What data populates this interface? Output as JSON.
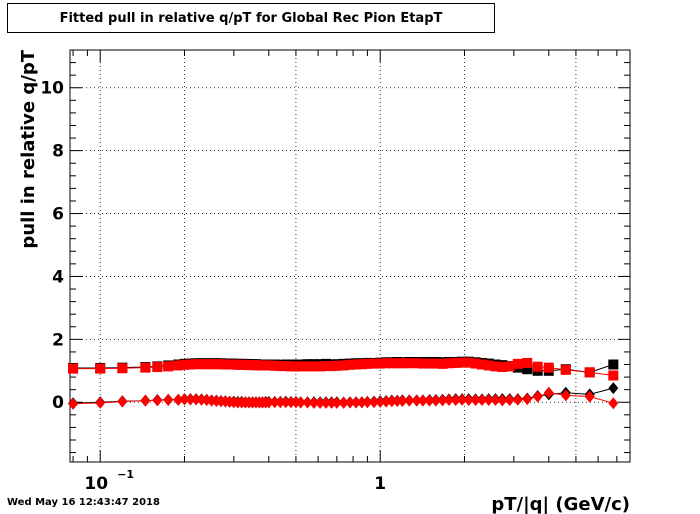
{
  "timestamp": "Wed May 16 12:43:47 2018",
  "chart_data": {
    "type": "scatter",
    "title": "Fitted pull in relative q/pT for Global Rec Pion EtapT",
    "xlabel": "pT/|q| (GeV/c)",
    "ylabel": "pull in relative q/pT",
    "x_scale": "log",
    "xlim": [
      0.078,
      7.8
    ],
    "ylim": [
      -1.9,
      11.2
    ],
    "x_tick_labels": [
      {
        "value": 0.1,
        "base": "10",
        "exp": "−1"
      },
      {
        "value": 1,
        "base": "1",
        "exp": ""
      }
    ],
    "y_ticks": [
      0,
      2,
      4,
      6,
      8,
      10
    ],
    "grid": true,
    "series": [
      {
        "color": "#000000",
        "marker": "square",
        "points": [
          [
            0.08,
            1.09
          ],
          [
            0.1,
            1.09
          ],
          [
            0.12,
            1.1
          ],
          [
            0.145,
            1.12
          ],
          [
            0.16,
            1.14
          ],
          [
            0.175,
            1.17
          ],
          [
            0.19,
            1.2
          ],
          [
            0.2,
            1.22
          ],
          [
            0.21,
            1.23
          ],
          [
            0.22,
            1.24
          ],
          [
            0.23,
            1.24
          ],
          [
            0.24,
            1.24
          ],
          [
            0.25,
            1.24
          ],
          [
            0.26,
            1.24
          ],
          [
            0.27,
            1.24
          ],
          [
            0.28,
            1.23
          ],
          [
            0.29,
            1.23
          ],
          [
            0.3,
            1.23
          ],
          [
            0.31,
            1.22
          ],
          [
            0.32,
            1.22
          ],
          [
            0.33,
            1.22
          ],
          [
            0.34,
            1.21
          ],
          [
            0.35,
            1.21
          ],
          [
            0.36,
            1.21
          ],
          [
            0.37,
            1.2
          ],
          [
            0.38,
            1.2
          ],
          [
            0.39,
            1.2
          ],
          [
            0.4,
            1.2
          ],
          [
            0.42,
            1.2
          ],
          [
            0.44,
            1.19
          ],
          [
            0.46,
            1.2
          ],
          [
            0.48,
            1.19
          ],
          [
            0.5,
            1.2
          ],
          [
            0.52,
            1.2
          ],
          [
            0.55,
            1.21
          ],
          [
            0.58,
            1.21
          ],
          [
            0.61,
            1.21
          ],
          [
            0.64,
            1.22
          ],
          [
            0.67,
            1.2
          ],
          [
            0.7,
            1.21
          ],
          [
            0.74,
            1.22
          ],
          [
            0.78,
            1.23
          ],
          [
            0.82,
            1.24
          ],
          [
            0.86,
            1.24
          ],
          [
            0.9,
            1.25
          ],
          [
            0.95,
            1.25
          ],
          [
            1.0,
            1.26
          ],
          [
            1.05,
            1.27
          ],
          [
            1.1,
            1.27
          ],
          [
            1.15,
            1.28
          ],
          [
            1.2,
            1.27
          ],
          [
            1.27,
            1.28
          ],
          [
            1.35,
            1.28
          ],
          [
            1.42,
            1.28
          ],
          [
            1.5,
            1.28
          ],
          [
            1.58,
            1.28
          ],
          [
            1.67,
            1.27
          ],
          [
            1.76,
            1.28
          ],
          [
            1.86,
            1.28
          ],
          [
            1.96,
            1.29
          ],
          [
            2.07,
            1.29
          ],
          [
            2.19,
            1.27
          ],
          [
            2.31,
            1.25
          ],
          [
            2.44,
            1.23
          ],
          [
            2.58,
            1.2
          ],
          [
            2.73,
            1.18
          ],
          [
            2.9,
            1.15
          ],
          [
            3.1,
            1.1
          ],
          [
            3.35,
            1.05
          ],
          [
            3.65,
            1.0
          ],
          [
            4.0,
            1.0
          ],
          [
            4.6,
            1.05
          ],
          [
            5.6,
            0.95
          ],
          [
            6.8,
            1.2
          ]
        ]
      },
      {
        "color": "#000000",
        "marker": "diamond",
        "points": [
          [
            0.08,
            -0.03
          ],
          [
            0.1,
            0.0
          ],
          [
            0.12,
            0.03
          ],
          [
            0.145,
            0.05
          ],
          [
            0.16,
            0.07
          ],
          [
            0.175,
            0.08
          ],
          [
            0.19,
            0.08
          ],
          [
            0.2,
            0.1
          ],
          [
            0.21,
            0.1
          ],
          [
            0.22,
            0.1
          ],
          [
            0.23,
            0.09
          ],
          [
            0.24,
            0.08
          ],
          [
            0.25,
            0.06
          ],
          [
            0.26,
            0.05
          ],
          [
            0.27,
            0.04
          ],
          [
            0.28,
            0.03
          ],
          [
            0.29,
            0.02
          ],
          [
            0.3,
            0.02
          ],
          [
            0.31,
            0.01
          ],
          [
            0.32,
            0.01
          ],
          [
            0.33,
            0.0
          ],
          [
            0.34,
            0.0
          ],
          [
            0.35,
            0.0
          ],
          [
            0.36,
            0.0
          ],
          [
            0.37,
            0.0
          ],
          [
            0.38,
            0.0
          ],
          [
            0.39,
            0.01
          ],
          [
            0.4,
            0.01
          ],
          [
            0.42,
            0.01
          ],
          [
            0.44,
            0.01
          ],
          [
            0.46,
            0.02
          ],
          [
            0.48,
            0.01
          ],
          [
            0.5,
            0.01
          ],
          [
            0.52,
            0.0
          ],
          [
            0.55,
            0.0
          ],
          [
            0.58,
            0.0
          ],
          [
            0.61,
            0.0
          ],
          [
            0.64,
            0.0
          ],
          [
            0.67,
            0.0
          ],
          [
            0.7,
            0.0
          ],
          [
            0.74,
            -0.01
          ],
          [
            0.78,
            0.0
          ],
          [
            0.82,
            0.0
          ],
          [
            0.86,
            0.0
          ],
          [
            0.9,
            0.01
          ],
          [
            0.95,
            0.02
          ],
          [
            1.0,
            0.03
          ],
          [
            1.05,
            0.04
          ],
          [
            1.1,
            0.05
          ],
          [
            1.15,
            0.05
          ],
          [
            1.2,
            0.06
          ],
          [
            1.27,
            0.06
          ],
          [
            1.35,
            0.06
          ],
          [
            1.42,
            0.06
          ],
          [
            1.5,
            0.07
          ],
          [
            1.58,
            0.07
          ],
          [
            1.67,
            0.08
          ],
          [
            1.76,
            0.09
          ],
          [
            1.86,
            0.1
          ],
          [
            1.96,
            0.1
          ],
          [
            2.07,
            0.1
          ],
          [
            2.19,
            0.09
          ],
          [
            2.31,
            0.09
          ],
          [
            2.44,
            0.1
          ],
          [
            2.58,
            0.1
          ],
          [
            2.73,
            0.1
          ],
          [
            2.9,
            0.1
          ],
          [
            3.1,
            0.1
          ],
          [
            3.35,
            0.12
          ],
          [
            3.65,
            0.2
          ],
          [
            4.0,
            0.25
          ],
          [
            4.6,
            0.3
          ],
          [
            5.6,
            0.25
          ],
          [
            6.8,
            0.45
          ]
        ]
      },
      {
        "color": "#ff0000",
        "marker": "square",
        "points": [
          [
            0.08,
            1.07
          ],
          [
            0.1,
            1.07
          ],
          [
            0.12,
            1.08
          ],
          [
            0.145,
            1.1
          ],
          [
            0.16,
            1.12
          ],
          [
            0.175,
            1.14
          ],
          [
            0.19,
            1.17
          ],
          [
            0.2,
            1.19
          ],
          [
            0.21,
            1.2
          ],
          [
            0.22,
            1.21
          ],
          [
            0.23,
            1.21
          ],
          [
            0.24,
            1.21
          ],
          [
            0.25,
            1.21
          ],
          [
            0.26,
            1.21
          ],
          [
            0.27,
            1.21
          ],
          [
            0.28,
            1.2
          ],
          [
            0.29,
            1.2
          ],
          [
            0.3,
            1.2
          ],
          [
            0.31,
            1.19
          ],
          [
            0.32,
            1.19
          ],
          [
            0.33,
            1.19
          ],
          [
            0.34,
            1.18
          ],
          [
            0.35,
            1.18
          ],
          [
            0.36,
            1.18
          ],
          [
            0.37,
            1.17
          ],
          [
            0.38,
            1.17
          ],
          [
            0.39,
            1.17
          ],
          [
            0.4,
            1.17
          ],
          [
            0.42,
            1.16
          ],
          [
            0.44,
            1.15
          ],
          [
            0.46,
            1.15
          ],
          [
            0.48,
            1.14
          ],
          [
            0.5,
            1.14
          ],
          [
            0.52,
            1.14
          ],
          [
            0.55,
            1.14
          ],
          [
            0.58,
            1.14
          ],
          [
            0.61,
            1.14
          ],
          [
            0.64,
            1.15
          ],
          [
            0.67,
            1.15
          ],
          [
            0.7,
            1.16
          ],
          [
            0.74,
            1.17
          ],
          [
            0.78,
            1.19
          ],
          [
            0.82,
            1.2
          ],
          [
            0.86,
            1.21
          ],
          [
            0.9,
            1.22
          ],
          [
            0.95,
            1.23
          ],
          [
            1.0,
            1.23
          ],
          [
            1.05,
            1.24
          ],
          [
            1.1,
            1.24
          ],
          [
            1.15,
            1.24
          ],
          [
            1.2,
            1.24
          ],
          [
            1.27,
            1.24
          ],
          [
            1.35,
            1.24
          ],
          [
            1.42,
            1.23
          ],
          [
            1.5,
            1.23
          ],
          [
            1.58,
            1.23
          ],
          [
            1.67,
            1.22
          ],
          [
            1.76,
            1.24
          ],
          [
            1.86,
            1.25
          ],
          [
            1.96,
            1.26
          ],
          [
            2.07,
            1.26
          ],
          [
            2.19,
            1.23
          ],
          [
            2.31,
            1.2
          ],
          [
            2.44,
            1.17
          ],
          [
            2.58,
            1.14
          ],
          [
            2.73,
            1.12
          ],
          [
            2.9,
            1.14
          ],
          [
            3.1,
            1.22
          ],
          [
            3.35,
            1.25
          ],
          [
            3.65,
            1.13
          ],
          [
            4.0,
            1.1
          ],
          [
            4.6,
            1.03
          ],
          [
            5.6,
            0.95
          ],
          [
            6.8,
            0.85
          ]
        ]
      },
      {
        "color": "#ff0000",
        "marker": "diamond",
        "points": [
          [
            0.08,
            -0.05
          ],
          [
            0.1,
            -0.02
          ],
          [
            0.12,
            0.02
          ],
          [
            0.145,
            0.05
          ],
          [
            0.16,
            0.06
          ],
          [
            0.175,
            0.07
          ],
          [
            0.19,
            0.08
          ],
          [
            0.2,
            0.09
          ],
          [
            0.21,
            0.09
          ],
          [
            0.22,
            0.09
          ],
          [
            0.23,
            0.08
          ],
          [
            0.24,
            0.07
          ],
          [
            0.25,
            0.05
          ],
          [
            0.26,
            0.04
          ],
          [
            0.27,
            0.03
          ],
          [
            0.28,
            0.02
          ],
          [
            0.29,
            0.01
          ],
          [
            0.3,
            0.0
          ],
          [
            0.31,
            -0.01
          ],
          [
            0.32,
            -0.01
          ],
          [
            0.33,
            -0.01
          ],
          [
            0.34,
            -0.01
          ],
          [
            0.35,
            -0.01
          ],
          [
            0.36,
            -0.01
          ],
          [
            0.37,
            -0.01
          ],
          [
            0.38,
            -0.01
          ],
          [
            0.39,
            -0.01
          ],
          [
            0.4,
            -0.01
          ],
          [
            0.42,
            0.0
          ],
          [
            0.44,
            0.0
          ],
          [
            0.46,
            0.0
          ],
          [
            0.48,
            0.0
          ],
          [
            0.5,
            0.0
          ],
          [
            0.52,
            -0.01
          ],
          [
            0.55,
            -0.01
          ],
          [
            0.58,
            -0.02
          ],
          [
            0.61,
            -0.02
          ],
          [
            0.64,
            -0.02
          ],
          [
            0.67,
            -0.02
          ],
          [
            0.7,
            -0.02
          ],
          [
            0.74,
            -0.02
          ],
          [
            0.78,
            -0.01
          ],
          [
            0.82,
            -0.01
          ],
          [
            0.86,
            0.0
          ],
          [
            0.9,
            0.0
          ],
          [
            0.95,
            0.0
          ],
          [
            1.0,
            0.01
          ],
          [
            1.05,
            0.02
          ],
          [
            1.1,
            0.03
          ],
          [
            1.15,
            0.04
          ],
          [
            1.2,
            0.04
          ],
          [
            1.27,
            0.05
          ],
          [
            1.35,
            0.05
          ],
          [
            1.42,
            0.05
          ],
          [
            1.5,
            0.05
          ],
          [
            1.58,
            0.05
          ],
          [
            1.67,
            0.06
          ],
          [
            1.76,
            0.07
          ],
          [
            1.86,
            0.07
          ],
          [
            1.96,
            0.08
          ],
          [
            2.07,
            0.07
          ],
          [
            2.19,
            0.07
          ],
          [
            2.31,
            0.07
          ],
          [
            2.44,
            0.07
          ],
          [
            2.58,
            0.07
          ],
          [
            2.73,
            0.06
          ],
          [
            2.9,
            0.07
          ],
          [
            3.1,
            0.08
          ],
          [
            3.35,
            0.1
          ],
          [
            3.65,
            0.18
          ],
          [
            4.0,
            0.3
          ],
          [
            4.6,
            0.22
          ],
          [
            5.6,
            0.18
          ],
          [
            6.8,
            -0.03
          ]
        ]
      }
    ]
  }
}
